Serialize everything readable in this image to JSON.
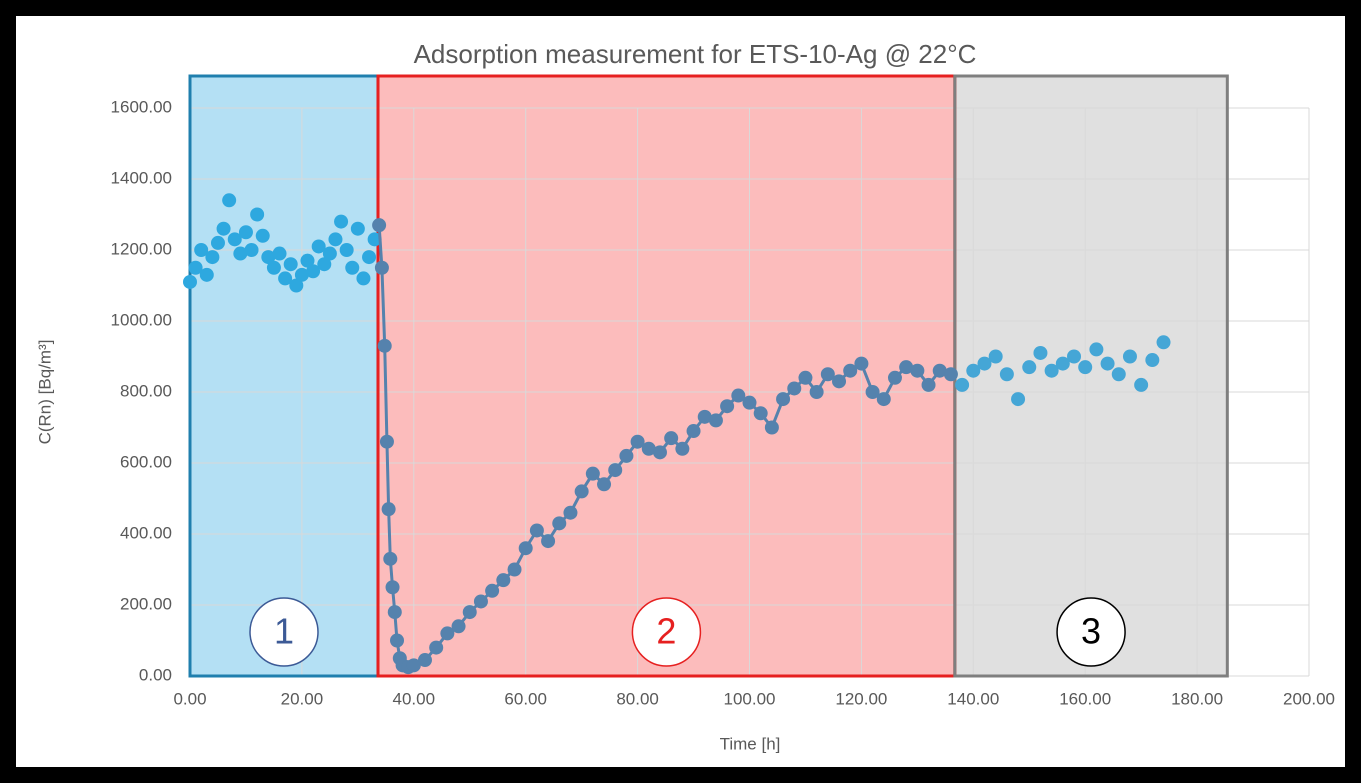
{
  "chart_data": {
    "type": "scatter",
    "title": "Adsorption measurement for ETS-10-Ag @ 22°C",
    "x_label": "Time [h]",
    "y_label": "C(Rn) [Bq/m³]",
    "xlim": [
      0,
      200
    ],
    "xticks": [
      {
        "value": 0,
        "label": "0.00"
      },
      {
        "value": 20,
        "label": "20.00"
      },
      {
        "value": 40,
        "label": "40.00"
      },
      {
        "value": 60,
        "label": "60.00"
      },
      {
        "value": 80,
        "label": "80.00"
      },
      {
        "value": 100,
        "label": "100.00"
      },
      {
        "value": 120,
        "label": "120.00"
      },
      {
        "value": 140,
        "label": "140.00"
      },
      {
        "value": 160,
        "label": "160.00"
      },
      {
        "value": 180,
        "label": "180.00"
      },
      {
        "value": 200,
        "label": "200.00"
      }
    ],
    "ylim": [
      0,
      1600
    ],
    "yticks": [
      {
        "value": 0,
        "label": "0.00"
      },
      {
        "value": 200,
        "label": "200.00"
      },
      {
        "value": 400,
        "label": "400.00"
      },
      {
        "value": 600,
        "label": "600.00"
      },
      {
        "value": 800,
        "label": "800.00"
      },
      {
        "value": 1000,
        "label": "1000.00"
      },
      {
        "value": 1200,
        "label": "1200.00"
      },
      {
        "value": 1400,
        "label": "1400.00"
      },
      {
        "value": 1600,
        "label": "1600.00"
      }
    ],
    "grid": true,
    "regions": [
      {
        "label": "1",
        "x": [
          0,
          33.6
        ],
        "fill": "#b4e0f4",
        "stroke": "#1f7fae",
        "label_color": "#3c5a96"
      },
      {
        "label": "2",
        "x": [
          33.6,
          136.7
        ],
        "fill": "#fcbcbc",
        "stroke": "#e62020",
        "label_color": "#e62020"
      },
      {
        "label": "3",
        "x": [
          136.7,
          185.4
        ],
        "fill": "#e0e0e0",
        "stroke": "#7f7f7f",
        "label_color": "#000000"
      }
    ],
    "series": [
      {
        "color": "#2ea8df",
        "line": false,
        "x": [
          0,
          1,
          2,
          3,
          4,
          5,
          6,
          7,
          8,
          9,
          10,
          11,
          12,
          13,
          14,
          15,
          16,
          17,
          18,
          19,
          20,
          21,
          22,
          23,
          24,
          25,
          26,
          27,
          28,
          29,
          30,
          31,
          32,
          33
        ],
        "values": [
          1110,
          1150,
          1200,
          1130,
          1180,
          1220,
          1260,
          1340,
          1230,
          1190,
          1250,
          1200,
          1300,
          1240,
          1180,
          1150,
          1190,
          1120,
          1160,
          1100,
          1130,
          1170,
          1140,
          1210,
          1160,
          1190,
          1230,
          1280,
          1200,
          1150,
          1260,
          1120,
          1180,
          1230
        ]
      },
      {
        "color": "#5582ad",
        "line": true,
        "x": [
          33.8,
          34.3,
          34.8,
          35.2,
          35.5,
          35.8,
          36.2,
          36.6,
          37,
          37.5,
          38,
          39,
          40,
          42,
          44,
          46,
          48,
          50,
          52,
          54,
          56,
          58,
          60,
          62,
          64,
          66,
          68,
          70,
          72,
          74,
          76,
          78,
          80,
          82,
          84,
          86,
          88,
          90,
          92,
          94,
          96,
          98,
          100,
          102,
          104,
          106,
          108,
          110,
          112,
          114,
          116,
          118,
          120,
          122,
          124,
          126,
          128,
          130,
          132,
          134,
          136
        ],
        "values": [
          1270,
          1150,
          930,
          660,
          470,
          330,
          250,
          180,
          100,
          50,
          30,
          25,
          30,
          45,
          80,
          120,
          140,
          180,
          210,
          240,
          270,
          300,
          360,
          410,
          380,
          430,
          460,
          520,
          570,
          540,
          580,
          620,
          660,
          640,
          630,
          670,
          640,
          690,
          730,
          720,
          760,
          790,
          770,
          740,
          700,
          780,
          810,
          840,
          800,
          850,
          830,
          860,
          880,
          800,
          780,
          840,
          870,
          860,
          820,
          860,
          850
        ]
      },
      {
        "color": "#45a6d6",
        "line": false,
        "x": [
          138,
          140,
          142,
          144,
          146,
          148,
          150,
          152,
          154,
          156,
          158,
          160,
          162,
          164,
          166,
          168,
          170,
          172,
          174
        ],
        "values": [
          820,
          860,
          880,
          900,
          850,
          780,
          870,
          910,
          860,
          880,
          900,
          870,
          920,
          880,
          850,
          900,
          820,
          890,
          940
        ]
      }
    ]
  }
}
